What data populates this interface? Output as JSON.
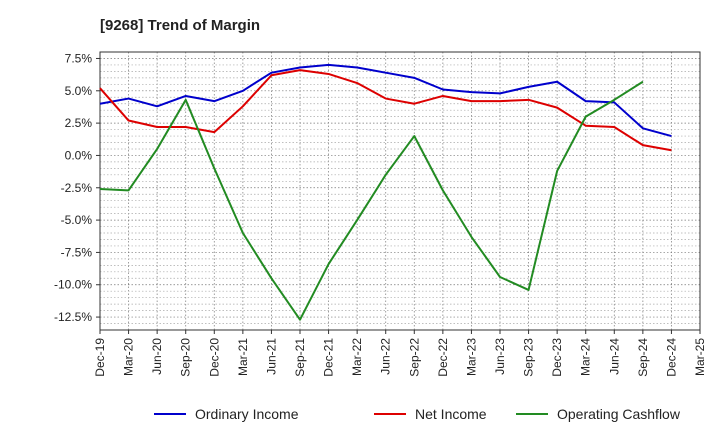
{
  "chart_data": {
    "type": "line",
    "title": "[9268]  Trend of Margin",
    "xlabel": "",
    "ylabel": "",
    "x": [
      "Dec-19",
      "Mar-20",
      "Jun-20",
      "Sep-20",
      "Dec-20",
      "Mar-21",
      "Jun-21",
      "Sep-21",
      "Dec-21",
      "Mar-22",
      "Jun-22",
      "Sep-22",
      "Dec-22",
      "Mar-23",
      "Jun-23",
      "Sep-23",
      "Dec-23",
      "Mar-24",
      "Jun-24",
      "Sep-24",
      "Dec-24",
      "Mar-25"
    ],
    "ylim": [
      -13.5,
      8.0
    ],
    "yticks": [
      7.5,
      5.0,
      2.5,
      0.0,
      -2.5,
      -5.0,
      -7.5,
      -10.0,
      -12.5
    ],
    "ytick_labels": [
      "7.5%",
      "5.0%",
      "2.5%",
      "0.0%",
      "-2.5%",
      "-5.0%",
      "-7.5%",
      "-10.0%",
      "-12.5%"
    ],
    "grid": true,
    "legend_position": "bottom",
    "series": [
      {
        "name": "Ordinary Income",
        "color": "#0000cc",
        "values": [
          4.0,
          4.4,
          3.8,
          4.6,
          4.2,
          5.0,
          6.4,
          6.8,
          7.0,
          6.8,
          6.4,
          6.0,
          5.1,
          4.9,
          4.8,
          5.3,
          5.7,
          4.2,
          4.1,
          2.1,
          1.5,
          null
        ]
      },
      {
        "name": "Net Income",
        "color": "#dd0000",
        "values": [
          5.2,
          2.7,
          2.2,
          2.2,
          1.8,
          3.8,
          6.2,
          6.6,
          6.3,
          5.6,
          4.4,
          4.0,
          4.6,
          4.2,
          4.2,
          4.3,
          3.7,
          2.3,
          2.2,
          0.8,
          0.4,
          null
        ]
      },
      {
        "name": "Operating Cashflow",
        "color": "#228B22",
        "values": [
          -2.6,
          -2.7,
          0.5,
          4.3,
          -1.0,
          -6.0,
          -9.5,
          -12.7,
          -8.4,
          -5.0,
          -1.5,
          1.5,
          -2.7,
          -6.3,
          -9.4,
          -10.4,
          -1.2,
          3.0,
          4.3,
          5.7,
          null,
          null
        ]
      }
    ]
  }
}
